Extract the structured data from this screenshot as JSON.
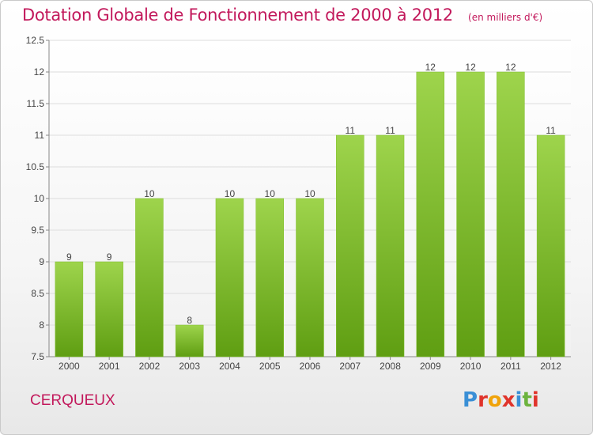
{
  "title": "Dotation Globale de Fonctionnement de 2000 à 2012",
  "subtitle": "(en milliers d'€)",
  "commune": "CERQUEUX",
  "logo": {
    "letters": [
      "P",
      "r",
      "o",
      "x",
      "i",
      "t",
      "i"
    ],
    "colors": [
      "#3a8fd6",
      "#e0342b",
      "#f0a30a",
      "#e0342b",
      "#3a8fd6",
      "#6cb33e",
      "#e0342b"
    ]
  },
  "colors": {
    "bar_light": "#9ed44c",
    "bar_dark": "#5f9e12",
    "title": "#c2185b"
  },
  "chart_data": {
    "type": "bar",
    "categories": [
      "2000",
      "2001",
      "2002",
      "2003",
      "2004",
      "2005",
      "2006",
      "2007",
      "2008",
      "2009",
      "2010",
      "2011",
      "2012"
    ],
    "values": [
      9,
      9,
      10,
      8,
      10,
      10,
      10,
      11,
      11,
      12,
      12,
      12,
      11
    ],
    "data_labels": [
      "9",
      "9",
      "10",
      "8",
      "10",
      "10",
      "10",
      "11",
      "11",
      "12",
      "12",
      "12",
      "11"
    ],
    "ylim": [
      7.5,
      12.5
    ],
    "yticks": [
      7.5,
      8,
      8.5,
      9,
      9.5,
      10,
      10.5,
      11,
      11.5,
      12,
      12.5
    ],
    "ytick_labels": [
      "7.5",
      "8",
      "8.5",
      "9",
      "9.5",
      "10",
      "10.5",
      "11",
      "11.5",
      "12",
      "12.5"
    ],
    "grid": true
  }
}
